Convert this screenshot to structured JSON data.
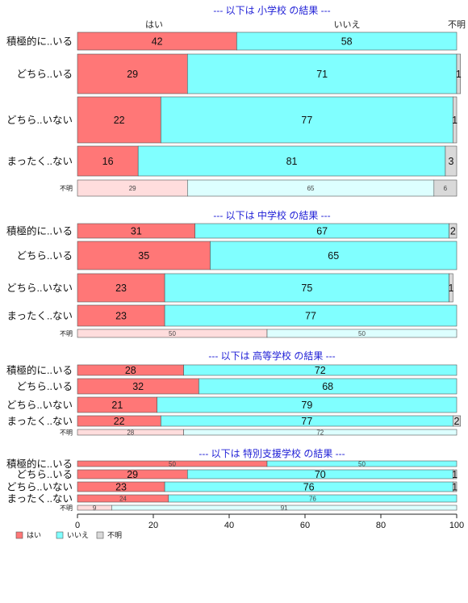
{
  "chart_data": {
    "type": "bar",
    "stacked": true,
    "orientation": "horizontal",
    "percent_scale": true,
    "xlim": [
      0,
      100
    ],
    "xticks": [
      0,
      20,
      40,
      60,
      80,
      100
    ],
    "grid": false,
    "legend_position": "bottom-left",
    "colors": {
      "yes": "#ff7777",
      "no": "#80ffff",
      "unknown": "#d9d9d9",
      "unknown_row_yes": "#ffdddd",
      "unknown_row_no": "#ddffff",
      "title": "#1f1fd6"
    },
    "header_labels": [
      "はい",
      "いいえ",
      "不明"
    ],
    "legend": [
      "はい",
      "いいえ",
      "不明"
    ],
    "panels": [
      {
        "title": "--- 以下は 小学校 の結果 ---",
        "rows": [
          {
            "label": "積極的に..いる",
            "values": [
              42,
              58,
              0
            ]
          },
          {
            "label": "どちら..いる",
            "values": [
              29,
              71,
              1
            ]
          },
          {
            "label": "どちら..いない",
            "values": [
              22,
              77,
              1
            ]
          },
          {
            "label": "まったく..ない",
            "values": [
              16,
              81,
              3
            ]
          },
          {
            "label": "不明",
            "values": [
              29,
              65,
              6
            ]
          }
        ]
      },
      {
        "title": "--- 以下は 中学校 の結果 ---",
        "rows": [
          {
            "label": "積極的に..いる",
            "values": [
              31,
              67,
              2
            ]
          },
          {
            "label": "どちら..いる",
            "values": [
              35,
              65,
              0
            ]
          },
          {
            "label": "どちら..いない",
            "values": [
              23,
              75,
              1
            ]
          },
          {
            "label": "まったく..ない",
            "values": [
              23,
              77,
              0
            ]
          },
          {
            "label": "不明",
            "values": [
              50,
              50,
              0
            ]
          }
        ]
      },
      {
        "title": "--- 以下は 高等学校 の結果 ---",
        "rows": [
          {
            "label": "積極的に..いる",
            "values": [
              28,
              72,
              0
            ]
          },
          {
            "label": "どちら..いる",
            "values": [
              32,
              68,
              0
            ]
          },
          {
            "label": "どちら..いない",
            "values": [
              21,
              79,
              0
            ]
          },
          {
            "label": "まったく..ない",
            "values": [
              22,
              77,
              2
            ]
          },
          {
            "label": "不明",
            "values": [
              28,
              72,
              0
            ]
          }
        ]
      },
      {
        "title": "--- 以下は 特別支援学校 の結果 ---",
        "rows": [
          {
            "label": "積極的に..いる",
            "values": [
              50,
              50,
              0
            ]
          },
          {
            "label": "どちら..いる",
            "values": [
              29,
              70,
              1
            ]
          },
          {
            "label": "どちら..いない",
            "values": [
              23,
              76,
              1
            ]
          },
          {
            "label": "まったく..ない",
            "values": [
              24,
              76,
              0
            ]
          },
          {
            "label": "不明",
            "values": [
              9,
              91,
              0
            ]
          }
        ]
      }
    ]
  }
}
